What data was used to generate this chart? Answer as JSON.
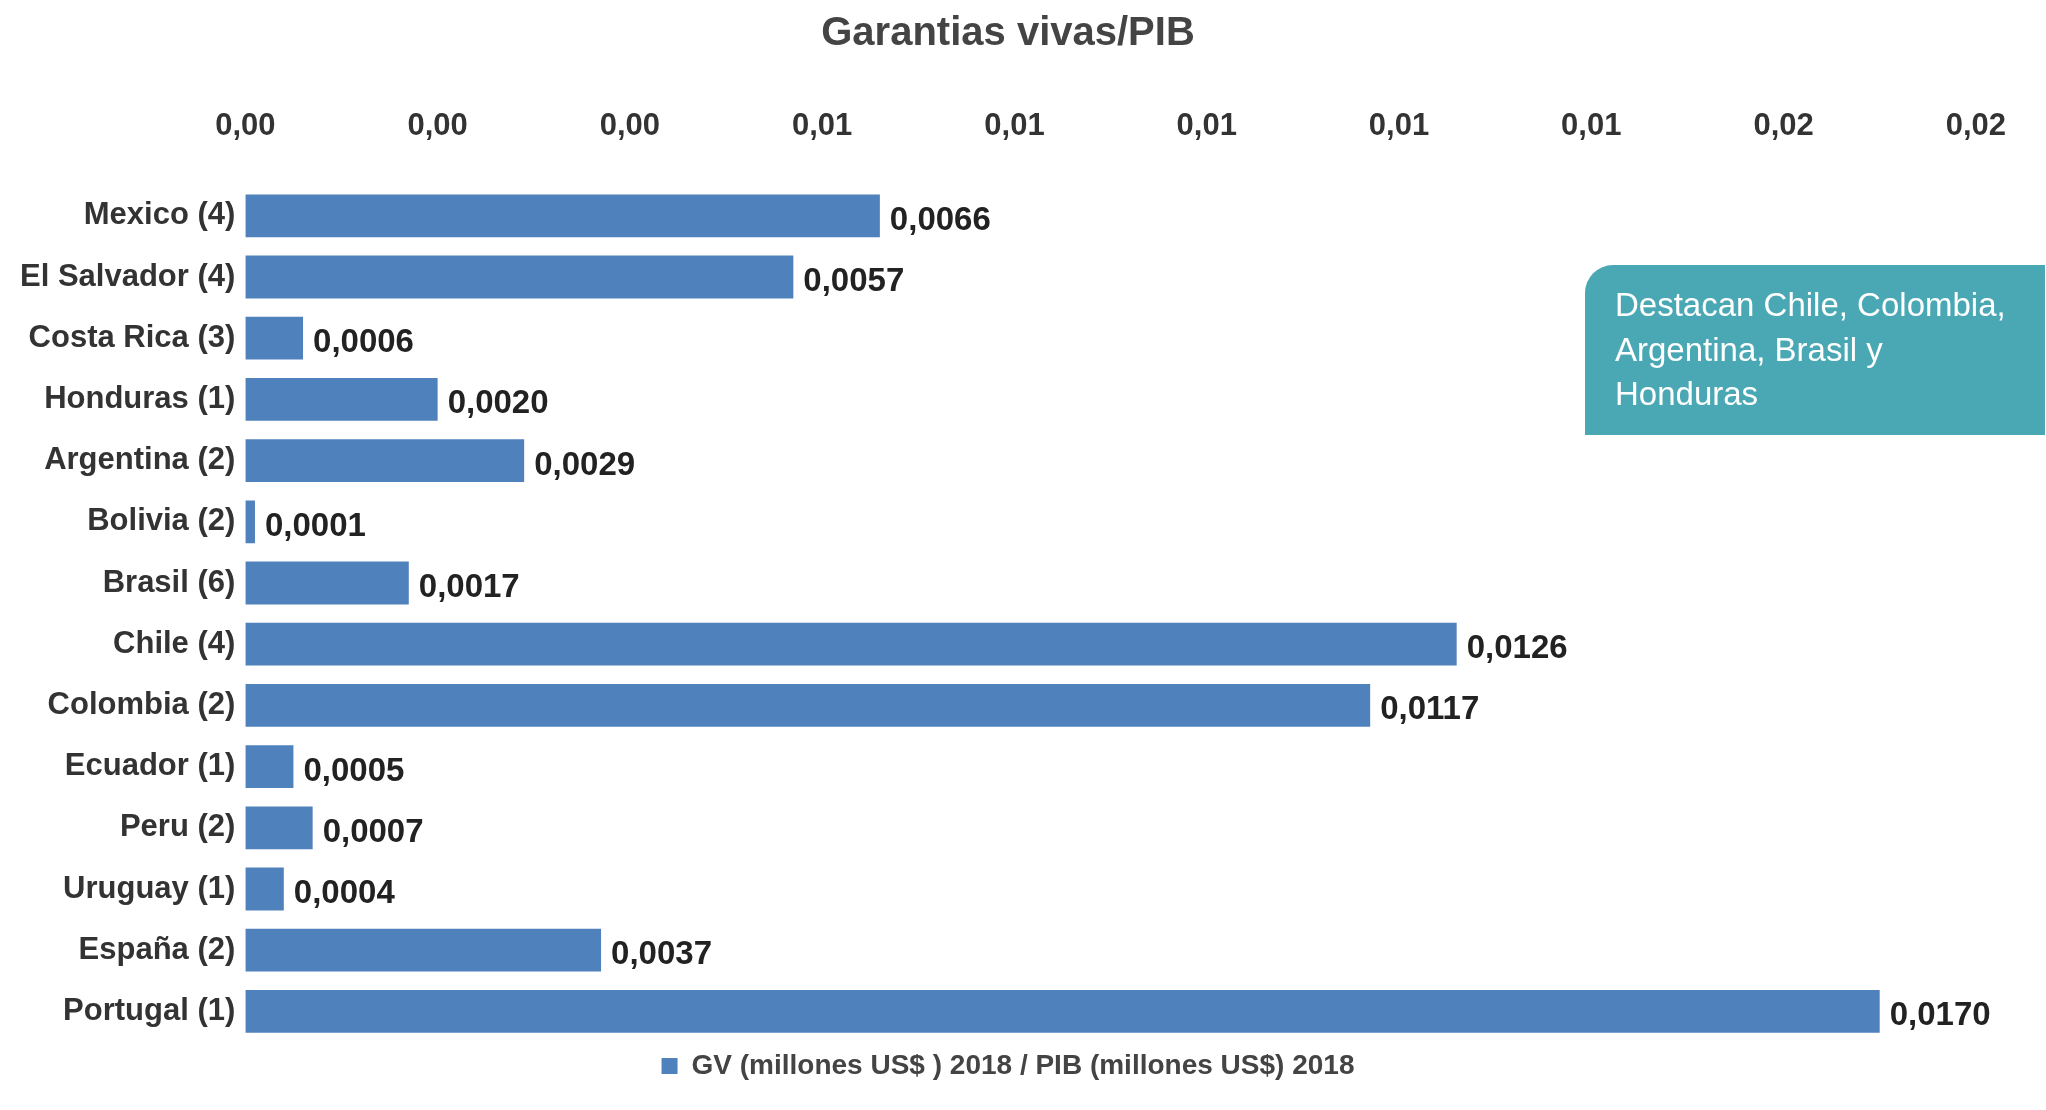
{
  "chart_data": {
    "type": "bar",
    "orientation": "horizontal",
    "title": "Garantias vivas/PIB",
    "categories": [
      "Mexico (4)",
      "El Salvador (4)",
      "Costa Rica (3)",
      "Honduras (1)",
      "Argentina (2)",
      "Bolivia (2)",
      "Brasil (6)",
      "Chile (4)",
      "Colombia (2)",
      "Ecuador (1)",
      "Peru (2)",
      "Uruguay (1)",
      "España (2)",
      "Portugal (1)"
    ],
    "series": [
      {
        "name": "GV (millones US$ ) 2018 / PIB (millones US$) 2018",
        "color": "#4f81bd",
        "values": [
          0.0066,
          0.0057,
          0.0006,
          0.002,
          0.0029,
          0.0001,
          0.0017,
          0.0126,
          0.0117,
          0.0005,
          0.0007,
          0.0004,
          0.0037,
          0.017
        ],
        "value_labels": [
          "0,0066",
          "0,0057",
          "0,0006",
          "0,0020",
          "0,0029",
          "0,0001",
          "0,0017",
          "0,0126",
          "0,0117",
          "0,0005",
          "0,0007",
          "0,0004",
          "0,0037",
          "0,0170"
        ]
      }
    ],
    "xlim": [
      0,
      0.018
    ],
    "xticks": [
      {
        "value": 0,
        "label": "0,00"
      },
      {
        "value": 0.002,
        "label": "0,00"
      },
      {
        "value": 0.004,
        "label": "0,00"
      },
      {
        "value": 0.006,
        "label": "0,01"
      },
      {
        "value": 0.008,
        "label": "0,01"
      },
      {
        "value": 0.01,
        "label": "0,01"
      },
      {
        "value": 0.012,
        "label": "0,01"
      },
      {
        "value": 0.014,
        "label": "0,01"
      },
      {
        "value": 0.016,
        "label": "0,02"
      },
      {
        "value": 0.018,
        "label": "0,02"
      }
    ],
    "grid": false,
    "legend": "bottom",
    "annotations": [
      "Destacan Chile, Colombia, Argentina, Brasil y Honduras"
    ]
  }
}
